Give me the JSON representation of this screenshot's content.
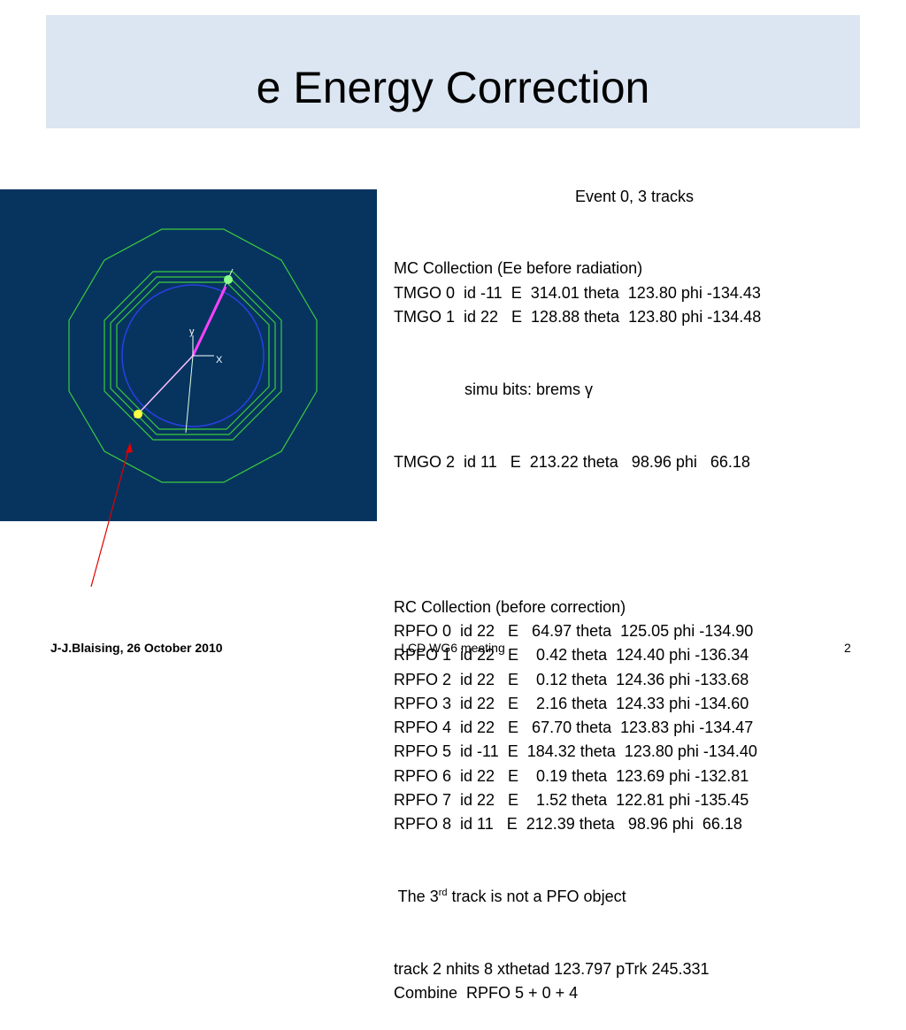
{
  "header": {
    "title": "e Energy Correction"
  },
  "event_display": {
    "axis_labels": [
      "y",
      "X"
    ]
  },
  "body": {
    "heading": "Event 0, 3 tracks",
    "mc_lines": [
      "MC Collection (Ee before radiation)",
      "TMGO 0  id -11  E  314.01 theta  123.80 phi -134.43",
      "TMGO 1  id 22   E  128.88 theta  123.80 phi -134.48"
    ],
    "mc_note": "simu bits: brems γ",
    "mc_last": "TMGO 2  id 11   E  213.22 theta   98.96 phi   66.18",
    "rc_lines": [
      "RC Collection (before correction)",
      "RPFO 0  id 22   E   64.97 theta  125.05 phi -134.90",
      "RPFO 1  id 22   E    0.42 theta  124.40 phi -136.34",
      "RPFO 2  id 22   E    0.12 theta  124.36 phi -133.68",
      "RPFO 3  id 22   E    2.16 theta  124.33 phi -134.60",
      "RPFO 4  id 22   E   67.70 theta  123.83 phi -134.47",
      "RPFO 5  id -11  E  184.32 theta  123.80 phi -134.40",
      "RPFO 6  id 22   E    0.19 theta  123.69 phi -132.81",
      "RPFO 7  id 22   E    1.52 theta  122.81 phi -135.45",
      "RPFO 8  id 11   E  212.39 theta   98.96 phi  66.18"
    ],
    "remark": {
      "prefix": " The 3",
      "superscript": "rd",
      "suffix": " track is not a PFO object"
    },
    "tail_lines": [
      "track 2 nhits 8 xthetad 123.797 pTrk 245.331",
      "Combine  RPFO 5 + 0 + 4"
    ]
  },
  "footer": {
    "author": "J-J.Blaising, 26 October 2010",
    "meeting": "LCD WG6 meeting",
    "page": "2"
  }
}
